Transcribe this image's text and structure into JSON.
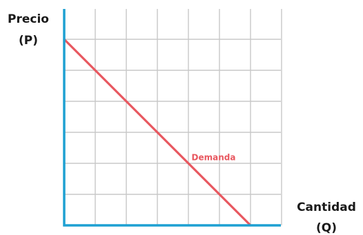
{
  "chart_data": {
    "type": "line",
    "title": "",
    "ylabel_lines": [
      "Precio",
      "(P)"
    ],
    "xlabel_lines": [
      "Cantidad",
      "(Q)"
    ],
    "xlim": [
      0,
      7
    ],
    "ylim": [
      0,
      6
    ],
    "grid": true,
    "x_ticks_shown": false,
    "y_ticks_shown": false,
    "series": [
      {
        "name": "Demanda",
        "color": "#e8575f",
        "points": [
          [
            0,
            6
          ],
          [
            6,
            0
          ]
        ]
      }
    ]
  },
  "colors": {
    "axis": "#1ea0d2",
    "grid": "#c8c8c8",
    "text": "#1a1a1a"
  }
}
